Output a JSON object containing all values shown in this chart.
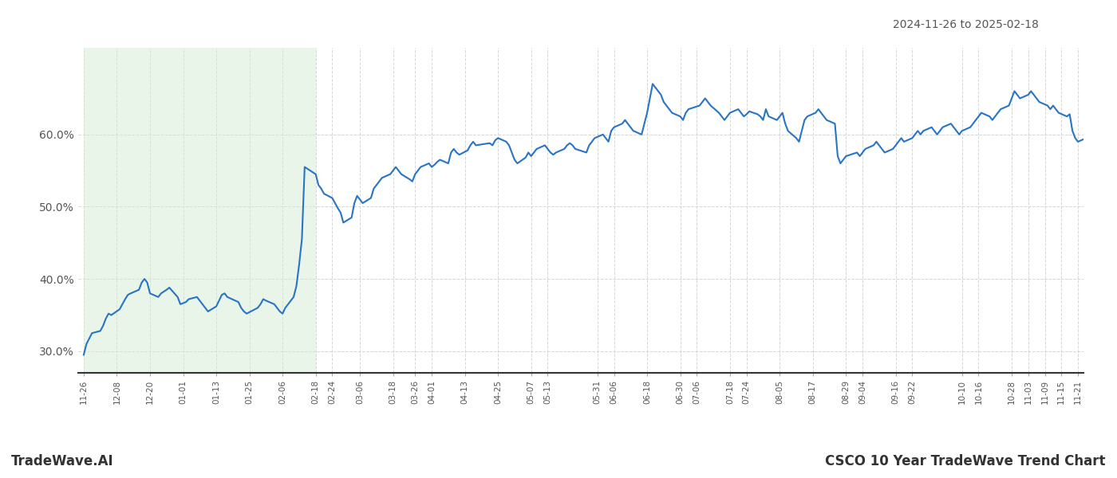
{
  "title_right": "2024-11-26 to 2025-02-18",
  "footer_left": "TradeWave.AI",
  "footer_right": "CSCO 10 Year TradeWave Trend Chart",
  "line_color": "#2874c5",
  "line_width": 1.5,
  "shaded_region_start": "2024-11-26",
  "shaded_region_end": "2025-02-18",
  "shaded_color": "#d4ecd4",
  "shaded_alpha": 0.5,
  "background_color": "#ffffff",
  "grid_color": "#cccccc",
  "grid_linestyle": "--",
  "ytick_labels": [
    "30.0%",
    "40.0%",
    "50.0%",
    "60.0%"
  ],
  "ytick_values": [
    30.0,
    40.0,
    50.0,
    60.0
  ],
  "ylim": [
    27,
    72
  ],
  "dates": [
    "2024-11-26",
    "2024-11-27",
    "2024-11-29",
    "2024-12-02",
    "2024-12-03",
    "2024-12-04",
    "2024-12-05",
    "2024-12-06",
    "2024-12-09",
    "2024-12-10",
    "2024-12-11",
    "2024-12-12",
    "2024-12-13",
    "2024-12-16",
    "2024-12-17",
    "2024-12-18",
    "2024-12-19",
    "2024-12-20",
    "2024-12-23",
    "2024-12-24",
    "2024-12-26",
    "2024-12-27",
    "2024-12-30",
    "2024-12-31",
    "2025-01-02",
    "2025-01-03",
    "2025-01-06",
    "2025-01-07",
    "2025-01-08",
    "2025-01-09",
    "2025-01-10",
    "2025-01-13",
    "2025-01-14",
    "2025-01-15",
    "2025-01-16",
    "2025-01-17",
    "2025-01-21",
    "2025-01-22",
    "2025-01-23",
    "2025-01-24",
    "2025-01-27",
    "2025-01-28",
    "2025-01-29",
    "2025-01-30",
    "2025-01-31",
    "2025-02-03",
    "2025-02-04",
    "2025-02-05",
    "2025-02-06",
    "2025-02-07",
    "2025-02-10",
    "2025-02-11",
    "2025-02-12",
    "2025-02-13",
    "2025-02-14",
    "2025-02-18",
    "2025-02-19",
    "2025-02-20",
    "2025-02-21",
    "2025-02-24",
    "2025-02-25",
    "2025-02-26",
    "2025-02-27",
    "2025-02-28",
    "2025-03-03",
    "2025-03-04",
    "2025-03-05",
    "2025-03-06",
    "2025-03-07",
    "2025-03-10",
    "2025-03-11",
    "2025-03-12",
    "2025-03-13",
    "2025-03-14",
    "2025-03-17",
    "2025-03-18",
    "2025-03-19",
    "2025-03-20",
    "2025-03-21",
    "2025-03-24",
    "2025-03-25",
    "2025-03-26",
    "2025-03-27",
    "2025-03-28",
    "2025-03-31",
    "2025-04-01",
    "2025-04-02",
    "2025-04-03",
    "2025-04-04",
    "2025-04-07",
    "2025-04-08",
    "2025-04-09",
    "2025-04-10",
    "2025-04-11",
    "2025-04-14",
    "2025-04-15",
    "2025-04-16",
    "2025-04-17",
    "2025-04-22",
    "2025-04-23",
    "2025-04-24",
    "2025-04-25",
    "2025-04-28",
    "2025-04-29",
    "2025-04-30",
    "2025-05-01",
    "2025-05-02",
    "2025-05-05",
    "2025-05-06",
    "2025-05-07",
    "2025-05-08",
    "2025-05-09",
    "2025-05-12",
    "2025-05-13",
    "2025-05-14",
    "2025-05-15",
    "2025-05-16",
    "2025-05-19",
    "2025-05-20",
    "2025-05-21",
    "2025-05-22",
    "2025-05-23",
    "2025-05-27",
    "2025-05-28",
    "2025-05-29",
    "2025-05-30",
    "2025-06-02",
    "2025-06-03",
    "2025-06-04",
    "2025-06-05",
    "2025-06-06",
    "2025-06-09",
    "2025-06-10",
    "2025-06-11",
    "2025-06-12",
    "2025-06-13",
    "2025-06-16",
    "2025-06-17",
    "2025-06-18",
    "2025-06-19",
    "2025-06-20",
    "2025-06-23",
    "2025-06-24",
    "2025-06-25",
    "2025-06-26",
    "2025-06-27",
    "2025-06-30",
    "2025-07-01",
    "2025-07-02",
    "2025-07-03",
    "2025-07-07",
    "2025-07-08",
    "2025-07-09",
    "2025-07-10",
    "2025-07-11",
    "2025-07-14",
    "2025-07-15",
    "2025-07-16",
    "2025-07-17",
    "2025-07-18",
    "2025-07-21",
    "2025-07-22",
    "2025-07-23",
    "2025-07-24",
    "2025-07-25",
    "2025-07-28",
    "2025-07-29",
    "2025-07-30",
    "2025-07-31",
    "2025-08-01",
    "2025-08-04",
    "2025-08-05",
    "2025-08-06",
    "2025-08-07",
    "2025-08-08",
    "2025-08-11",
    "2025-08-12",
    "2025-08-13",
    "2025-08-14",
    "2025-08-15",
    "2025-08-18",
    "2025-08-19",
    "2025-08-20",
    "2025-08-21",
    "2025-08-22",
    "2025-08-25",
    "2025-08-26",
    "2025-08-27",
    "2025-08-28",
    "2025-08-29",
    "2025-09-02",
    "2025-09-03",
    "2025-09-04",
    "2025-09-05",
    "2025-09-08",
    "2025-09-09",
    "2025-09-10",
    "2025-09-11",
    "2025-09-12",
    "2025-09-15",
    "2025-09-16",
    "2025-09-17",
    "2025-09-18",
    "2025-09-19",
    "2025-09-22",
    "2025-09-23",
    "2025-09-24",
    "2025-09-25",
    "2025-09-26",
    "2025-09-29",
    "2025-09-30",
    "2025-10-01",
    "2025-10-02",
    "2025-10-03",
    "2025-10-06",
    "2025-10-07",
    "2025-10-08",
    "2025-10-09",
    "2025-10-10",
    "2025-10-13",
    "2025-10-14",
    "2025-10-15",
    "2025-10-16",
    "2025-10-17",
    "2025-10-20",
    "2025-10-21",
    "2025-10-22",
    "2025-10-23",
    "2025-10-24",
    "2025-10-27",
    "2025-10-28",
    "2025-10-29",
    "2025-10-30",
    "2025-10-31",
    "2025-11-03",
    "2025-11-04",
    "2025-11-05",
    "2025-11-06",
    "2025-11-07",
    "2025-11-10",
    "2025-11-11",
    "2025-11-12",
    "2025-11-13",
    "2025-11-14",
    "2025-11-17",
    "2025-11-18",
    "2025-11-19",
    "2025-11-20",
    "2025-11-21",
    "2025-11-24",
    "2025-11-25",
    "2025-11-26"
  ],
  "values": [
    29.5,
    31.0,
    32.5,
    32.8,
    33.5,
    34.5,
    35.2,
    35.0,
    35.8,
    36.5,
    37.2,
    37.8,
    38.0,
    38.5,
    39.5,
    40.0,
    39.5,
    38.0,
    37.5,
    38.0,
    38.5,
    38.8,
    37.5,
    36.5,
    36.8,
    37.2,
    37.5,
    37.0,
    36.5,
    36.0,
    35.5,
    36.2,
    37.0,
    37.8,
    38.0,
    37.5,
    36.8,
    36.0,
    35.5,
    35.2,
    35.8,
    36.0,
    36.5,
    37.2,
    37.0,
    36.5,
    36.0,
    35.5,
    35.2,
    36.0,
    37.5,
    39.0,
    42.0,
    45.5,
    55.5,
    54.5,
    53.0,
    52.5,
    51.8,
    51.2,
    50.5,
    49.8,
    49.2,
    47.8,
    48.5,
    50.5,
    51.5,
    51.0,
    50.5,
    51.2,
    52.5,
    53.0,
    53.5,
    54.0,
    54.5,
    55.0,
    55.5,
    55.0,
    54.5,
    53.8,
    53.5,
    54.5,
    55.0,
    55.5,
    56.0,
    55.5,
    55.8,
    56.2,
    56.5,
    56.0,
    57.5,
    58.0,
    57.5,
    57.2,
    57.8,
    58.5,
    59.0,
    58.5,
    58.8,
    58.5,
    59.2,
    59.5,
    59.0,
    58.5,
    57.5,
    56.5,
    56.0,
    56.8,
    57.5,
    57.0,
    57.5,
    58.0,
    58.5,
    58.0,
    57.5,
    57.2,
    57.5,
    58.0,
    58.5,
    58.8,
    58.5,
    58.0,
    57.5,
    58.5,
    59.0,
    59.5,
    60.0,
    59.5,
    59.0,
    60.5,
    61.0,
    61.5,
    62.0,
    61.5,
    61.0,
    60.5,
    60.0,
    61.5,
    63.0,
    65.0,
    67.0,
    65.5,
    64.5,
    64.0,
    63.5,
    63.0,
    62.5,
    62.0,
    63.0,
    63.5,
    64.0,
    64.5,
    65.0,
    64.5,
    64.0,
    63.0,
    62.5,
    62.0,
    62.5,
    63.0,
    63.5,
    63.0,
    62.5,
    62.8,
    63.2,
    62.8,
    62.5,
    62.0,
    63.5,
    62.5,
    62.0,
    62.5,
    63.0,
    61.5,
    60.5,
    59.5,
    59.0,
    60.5,
    62.0,
    62.5,
    63.0,
    63.5,
    63.0,
    62.5,
    62.0,
    61.5,
    57.0,
    56.0,
    56.5,
    57.0,
    57.5,
    57.0,
    57.5,
    58.0,
    58.5,
    59.0,
    58.5,
    58.0,
    57.5,
    58.0,
    58.5,
    59.0,
    59.5,
    59.0,
    59.5,
    60.0,
    60.5,
    60.0,
    60.5,
    61.0,
    60.5,
    60.0,
    60.5,
    61.0,
    61.5,
    61.0,
    60.5,
    60.0,
    60.5,
    61.0,
    61.5,
    62.0,
    62.5,
    63.0,
    62.5,
    62.0,
    62.5,
    63.0,
    63.5,
    64.0,
    65.0,
    66.0,
    65.5,
    65.0,
    65.5,
    66.0,
    65.5,
    65.0,
    64.5,
    64.0,
    63.5,
    64.0,
    63.5,
    63.0,
    62.5,
    62.8,
    60.5,
    59.5,
    59.0,
    59.5,
    60.0,
    60.5
  ],
  "xtick_labels": [
    "11-26",
    "12-08",
    "12-20",
    "01-01",
    "01-13",
    "01-25",
    "02-06",
    "02-18",
    "02-24",
    "03-06",
    "03-18",
    "03-26",
    "04-01",
    "04-13",
    "04-25",
    "05-07",
    "05-13",
    "05-31",
    "06-06",
    "06-18",
    "06-30",
    "07-06",
    "07-18",
    "07-24",
    "08-05",
    "08-17",
    "08-29",
    "09-04",
    "09-16",
    "09-22",
    "10-10",
    "10-16",
    "10-28",
    "11-03",
    "11-09",
    "11-15",
    "11-21"
  ]
}
